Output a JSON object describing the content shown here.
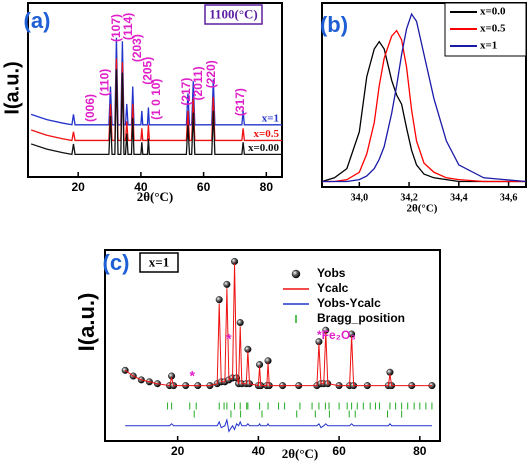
{
  "chart_data": [
    {
      "type": "line",
      "label": "(a)",
      "annotation_box": "1100(°C)",
      "ylabel": "I(a.u.)",
      "xlabel": "2θ(°C)",
      "x": [
        5,
        10,
        15,
        18,
        18.5,
        19,
        22,
        29.8,
        30.3,
        30.8,
        31.7,
        32.2,
        32.7,
        33.6,
        34.1,
        34.6,
        35.1,
        35.5,
        35.9,
        37,
        37.4,
        37.8,
        40,
        40.3,
        40.6,
        42.1,
        42.4,
        42.7,
        54.5,
        55,
        55.5,
        56.2,
        56.7,
        57.2,
        62.6,
        63.1,
        63.6,
        72.2,
        72.6,
        73,
        85
      ],
      "xlim": [
        4,
        85
      ],
      "xticks": [
        20,
        40,
        60,
        80
      ],
      "ylim": [
        0,
        100
      ],
      "legend": "inline",
      "series": [
        {
          "name": "x=1",
          "color": "#2233cc",
          "values": [
            36,
            33,
            31,
            30,
            36,
            30,
            30,
            30,
            52,
            30,
            30,
            80,
            30,
            30,
            78,
            30,
            30,
            42,
            30,
            30,
            52,
            30,
            30,
            38,
            30,
            30,
            40,
            30,
            30,
            48,
            30,
            30,
            55,
            30,
            30,
            56,
            30,
            30,
            38,
            30,
            30
          ]
        },
        {
          "name": "x=0.5",
          "color": "#ee1111",
          "values": [
            27,
            24,
            22,
            21,
            26,
            21,
            21,
            21,
            42,
            21,
            21,
            68,
            21,
            21,
            66,
            21,
            21,
            32,
            21,
            21,
            42,
            21,
            21,
            28,
            21,
            21,
            30,
            21,
            21,
            38,
            21,
            21,
            45,
            21,
            21,
            46,
            21,
            21,
            28,
            21,
            21
          ]
        },
        {
          "name": "x=0.00",
          "color": "#111111",
          "values": [
            19,
            16,
            14,
            13,
            19,
            13,
            13,
            13,
            35,
            13,
            13,
            62,
            13,
            13,
            60,
            13,
            13,
            25,
            13,
            13,
            34,
            13,
            13,
            20,
            13,
            13,
            22,
            13,
            13,
            30,
            13,
            13,
            37,
            13,
            13,
            38,
            13,
            13,
            20,
            13,
            13
          ]
        }
      ],
      "peak_labels": [
        {
          "text": "(006)",
          "x": 24.1,
          "y": 31.6
        },
        {
          "text": "(110)",
          "x": 28.6,
          "y": 46.5
        },
        {
          "text": "(107)",
          "x": 32.4,
          "y": 77.6
        },
        {
          "text": "(114)",
          "x": 36.2,
          "y": 78.7
        },
        {
          "text": "(203)",
          "x": 39.1,
          "y": 66
        },
        {
          "text": "(205)",
          "x": 42.3,
          "y": 53
        },
        {
          "text": "(1 0 10)",
          "x": 45.1,
          "y": 32.8
        },
        {
          "text": "(217)",
          "x": 54.7,
          "y": 41
        },
        {
          "text": "(2011)",
          "x": 58.5,
          "y": 44
        },
        {
          "text": "(220)",
          "x": 62.7,
          "y": 51
        },
        {
          "text": "(317)",
          "x": 71.9,
          "y": 35
        }
      ]
    },
    {
      "type": "line",
      "label": "(b)",
      "xlabel": "2θ(°C)",
      "x": [
        33.85,
        33.9,
        33.95,
        34.0,
        34.03,
        34.06,
        34.08,
        34.1,
        34.13,
        34.15,
        34.17,
        34.19,
        34.21,
        34.23,
        34.26,
        34.3,
        34.35,
        34.4,
        34.5,
        34.67
      ],
      "xlim": [
        33.85,
        34.67
      ],
      "xticks": [
        {
          "value": 34.0,
          "label": "34,0"
        },
        {
          "value": 34.2,
          "label": "34,2"
        },
        {
          "value": 34.4,
          "label": "34,4"
        },
        {
          "value": 34.6,
          "label": "34,6"
        }
      ],
      "ylim": [
        0,
        100
      ],
      "legend": "upper right",
      "series": [
        {
          "name": "x=0.0",
          "color": "#000000",
          "values": [
            3,
            5,
            10,
            30,
            60,
            75,
            79,
            75,
            58,
            50,
            45,
            32,
            20,
            12,
            7,
            5,
            4,
            3,
            3,
            3
          ]
        },
        {
          "name": "x=0.5",
          "color": "#ff0000",
          "values": [
            3,
            3,
            4,
            8,
            18,
            35,
            55,
            70,
            82,
            85,
            80,
            65,
            42,
            25,
            13,
            8,
            5,
            4,
            3,
            3
          ]
        },
        {
          "name": "x=1",
          "color": "#1a1aa8",
          "values": [
            3,
            3,
            3,
            4,
            6,
            10,
            15,
            22,
            40,
            55,
            72,
            86,
            94,
            90,
            72,
            48,
            25,
            12,
            5,
            3
          ]
        }
      ]
    },
    {
      "type": "line",
      "label": "(c)",
      "annotation_box": "x=1",
      "ylabel": "I(a.u.)",
      "xlabel": "2θ(°C)",
      "x": [
        7,
        9,
        11,
        13,
        15,
        18,
        18.5,
        19,
        22,
        25,
        28,
        29.8,
        30.3,
        30.8,
        31.7,
        32.2,
        32.7,
        33.6,
        34.1,
        34.6,
        35.1,
        35.5,
        35.9,
        37,
        37.4,
        37.8,
        40,
        40.3,
        40.6,
        42.1,
        42.4,
        42.7,
        46,
        50,
        54.5,
        55,
        55.5,
        56.2,
        56.7,
        57.2,
        60,
        62.6,
        63.1,
        63.6,
        67,
        72.2,
        72.6,
        73,
        78,
        83
      ],
      "xlim": [
        2,
        85
      ],
      "xticks": [
        20,
        40,
        60,
        80
      ],
      "ylim": [
        0,
        100
      ],
      "legend": "upper right",
      "series": [
        {
          "name": "Yobs",
          "color": "#000000",
          "style": "markers",
          "values": [
            37,
            34,
            32,
            31,
            30,
            29,
            34,
            29,
            29,
            29,
            29,
            30,
            74,
            31,
            31,
            82,
            32,
            33,
            94,
            33,
            30,
            62,
            30,
            30,
            48,
            30,
            29,
            40,
            29,
            29,
            42,
            29,
            29,
            29,
            29,
            52,
            30,
            30,
            58,
            30,
            29,
            29,
            56,
            29,
            29,
            29,
            36,
            29,
            29,
            29
          ]
        },
        {
          "name": "Ycalc",
          "color": "#ee1111",
          "style": "line",
          "values": [
            37,
            34,
            32,
            31,
            30,
            29,
            33,
            29,
            29,
            29,
            29,
            30,
            72,
            31,
            31,
            80,
            32,
            33,
            93,
            33,
            30,
            60,
            30,
            30,
            47,
            30,
            29,
            39,
            29,
            29,
            41,
            29,
            29,
            29,
            29,
            51,
            30,
            30,
            57,
            30,
            29,
            29,
            55,
            29,
            29,
            29,
            35,
            29,
            29,
            29
          ]
        },
        {
          "name": "Yobs-Ycalc",
          "color": "#2233cc",
          "style": "line",
          "values": [
            8,
            8,
            8,
            8,
            8,
            8,
            9,
            8,
            8,
            8,
            8,
            8,
            10,
            7,
            8,
            11,
            5,
            8,
            6,
            9,
            8,
            10,
            8,
            8,
            9,
            8,
            8,
            9,
            8,
            8,
            9,
            8,
            8,
            8,
            8,
            9,
            7,
            8,
            9,
            8,
            8,
            8,
            9,
            8,
            8,
            8,
            9,
            8,
            8,
            8
          ]
        },
        {
          "name": "Bragg_position",
          "color": "#22aa22",
          "style": "ticks",
          "rows": [
            [
              17.5,
              18.5,
              23,
              24.6,
              30.3,
              31.5,
              32.2,
              34.1,
              35.5,
              37.1,
              37.4,
              40.3,
              42.4,
              45,
              46.5,
              50.3,
              53.3,
              55,
              56.6,
              57.5,
              60,
              62,
              63.1,
              64.5,
              66,
              67.7,
              69,
              70,
              72.6,
              74,
              75.5,
              77,
              78.6,
              80,
              81.5,
              83
            ],
            [
              24.1,
              33.2,
              35.6,
              40.9,
              49.5,
              54.1,
              57.6,
              62.5,
              64,
              72,
              75.5
            ]
          ]
        }
      ],
      "note": "*Fe₂O₃",
      "markers": [
        {
          "text": "*",
          "x": 23.6,
          "y": 33.5
        },
        {
          "text": "*",
          "x": 32.7,
          "y": 53
        }
      ]
    }
  ]
}
